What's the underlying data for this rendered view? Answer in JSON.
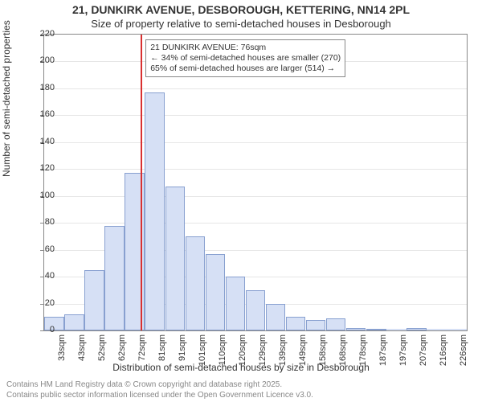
{
  "title_main": "21, DUNKIRK AVENUE, DESBOROUGH, KETTERING, NN14 2PL",
  "title_sub": "Size of property relative to semi-detached houses in Desborough",
  "ylabel": "Number of semi-detached properties",
  "xlabel": "Distribution of semi-detached houses by size in Desborough",
  "credit1": "Contains HM Land Registry data © Crown copyright and database right 2025.",
  "credit2": "Contains public sector information licensed under the Open Government Licence v3.0.",
  "chart": {
    "type": "histogram",
    "ylim": [
      0,
      220
    ],
    "ytick_step": 20,
    "bar_fill": "#d6e0f5",
    "bar_border": "#88a0d0",
    "grid_color": "#e6e6e6",
    "axis_color": "#888888",
    "background_color": "#ffffff",
    "bars": [
      {
        "label": "33sqm",
        "value": 10
      },
      {
        "label": "43sqm",
        "value": 12
      },
      {
        "label": "52sqm",
        "value": 45
      },
      {
        "label": "62sqm",
        "value": 78
      },
      {
        "label": "72sqm",
        "value": 117
      },
      {
        "label": "81sqm",
        "value": 177
      },
      {
        "label": "91sqm",
        "value": 107
      },
      {
        "label": "101sqm",
        "value": 70
      },
      {
        "label": "110sqm",
        "value": 57
      },
      {
        "label": "120sqm",
        "value": 40
      },
      {
        "label": "129sqm",
        "value": 30
      },
      {
        "label": "139sqm",
        "value": 20
      },
      {
        "label": "149sqm",
        "value": 10
      },
      {
        "label": "158sqm",
        "value": 8
      },
      {
        "label": "168sqm",
        "value": 9
      },
      {
        "label": "178sqm",
        "value": 2
      },
      {
        "label": "187sqm",
        "value": 1
      },
      {
        "label": "197sqm",
        "value": 0
      },
      {
        "label": "207sqm",
        "value": 2
      },
      {
        "label": "216sqm",
        "value": 0
      },
      {
        "label": "226sqm",
        "value": 0
      }
    ],
    "marker": {
      "index_position": 4.3,
      "color": "#d93030",
      "box": {
        "line1": "21 DUNKIRK AVENUE: 76sqm",
        "line2": "← 34% of semi-detached houses are smaller (270)",
        "line3": "65% of semi-detached houses are larger (514) →"
      }
    }
  }
}
